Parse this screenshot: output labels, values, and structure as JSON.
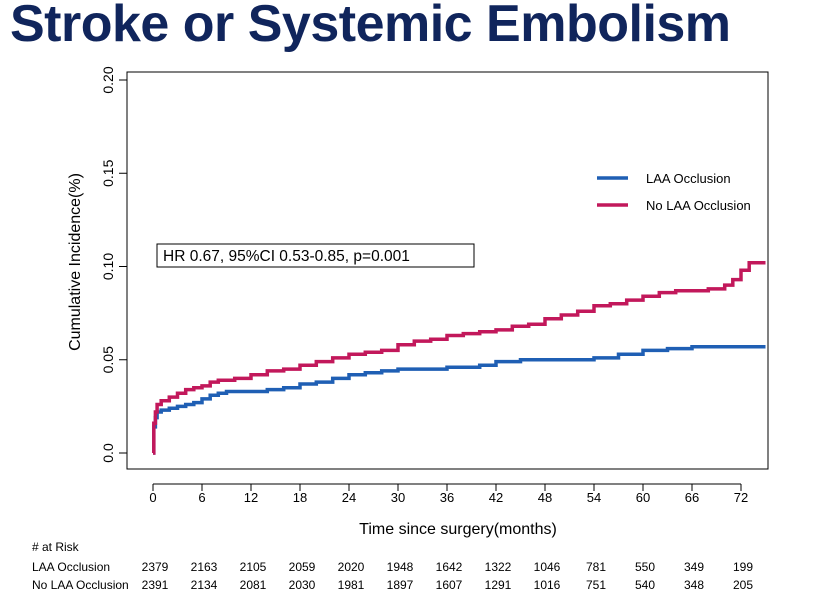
{
  "title": "Stroke or Systemic Embolism",
  "chart_data": {
    "type": "line",
    "xlabel": "Time since surgery(months)",
    "ylabel": "Cumulative Incidence(%)",
    "xlim": [
      0,
      78
    ],
    "ylim": [
      0,
      0.2
    ],
    "xticks": [
      "0",
      "6",
      "12",
      "18",
      "24",
      "30",
      "36",
      "42",
      "48",
      "54",
      "60",
      "66",
      "72"
    ],
    "yticks": [
      "0.0",
      "0.05",
      "0.10",
      "0.15",
      "0.20"
    ],
    "annotation": "HR 0.67, 95%CI 0.53-0.85, p=0.001",
    "legend_position": "right",
    "series": [
      {
        "name": "LAA Occlusion",
        "color": "#1f5fb4",
        "x": [
          0,
          0.1,
          0.3,
          0.5,
          1,
          2,
          3,
          4,
          5,
          6,
          7,
          8,
          9,
          10,
          12,
          14,
          16,
          18,
          20,
          22,
          24,
          26,
          28,
          30,
          33,
          36,
          40,
          42,
          45,
          48,
          51,
          54,
          57,
          60,
          63,
          66,
          69,
          72,
          75
        ],
        "y": [
          0,
          0.014,
          0.019,
          0.022,
          0.023,
          0.024,
          0.025,
          0.026,
          0.027,
          0.029,
          0.031,
          0.032,
          0.033,
          0.033,
          0.033,
          0.034,
          0.035,
          0.037,
          0.038,
          0.04,
          0.042,
          0.043,
          0.044,
          0.045,
          0.045,
          0.046,
          0.047,
          0.049,
          0.05,
          0.05,
          0.05,
          0.051,
          0.053,
          0.055,
          0.056,
          0.057,
          0.057,
          0.057,
          0.057
        ]
      },
      {
        "name": "No LAA Occlusion",
        "color": "#c2185b",
        "x": [
          0,
          0.1,
          0.3,
          0.5,
          1,
          2,
          3,
          4,
          5,
          6,
          7,
          8,
          10,
          12,
          14,
          16,
          18,
          20,
          22,
          24,
          26,
          28,
          30,
          32,
          34,
          36,
          38,
          40,
          42,
          44,
          46,
          48,
          50,
          52,
          54,
          56,
          58,
          60,
          62,
          64,
          66,
          68,
          70,
          71,
          72,
          73,
          75
        ],
        "y": [
          0,
          0.016,
          0.022,
          0.026,
          0.028,
          0.03,
          0.032,
          0.034,
          0.035,
          0.036,
          0.038,
          0.039,
          0.04,
          0.042,
          0.044,
          0.045,
          0.047,
          0.049,
          0.051,
          0.053,
          0.054,
          0.055,
          0.058,
          0.06,
          0.061,
          0.063,
          0.064,
          0.065,
          0.066,
          0.068,
          0.069,
          0.072,
          0.074,
          0.076,
          0.079,
          0.08,
          0.082,
          0.084,
          0.086,
          0.087,
          0.087,
          0.088,
          0.09,
          0.093,
          0.098,
          0.102,
          0.102
        ]
      }
    ]
  },
  "risk_table": {
    "header": "# at Risk",
    "rows": [
      {
        "label": "LAA Occlusion",
        "values": [
          "2379",
          "2163",
          "2105",
          "2059",
          "2020",
          "1948",
          "1642",
          "1322",
          "1046",
          "781",
          "550",
          "349",
          "199"
        ]
      },
      {
        "label": "No LAA Occlusion",
        "values": [
          "2391",
          "2134",
          "2081",
          "2030",
          "1981",
          "1897",
          "1607",
          "1291",
          "1016",
          "751",
          "540",
          "348",
          "205"
        ]
      }
    ]
  }
}
